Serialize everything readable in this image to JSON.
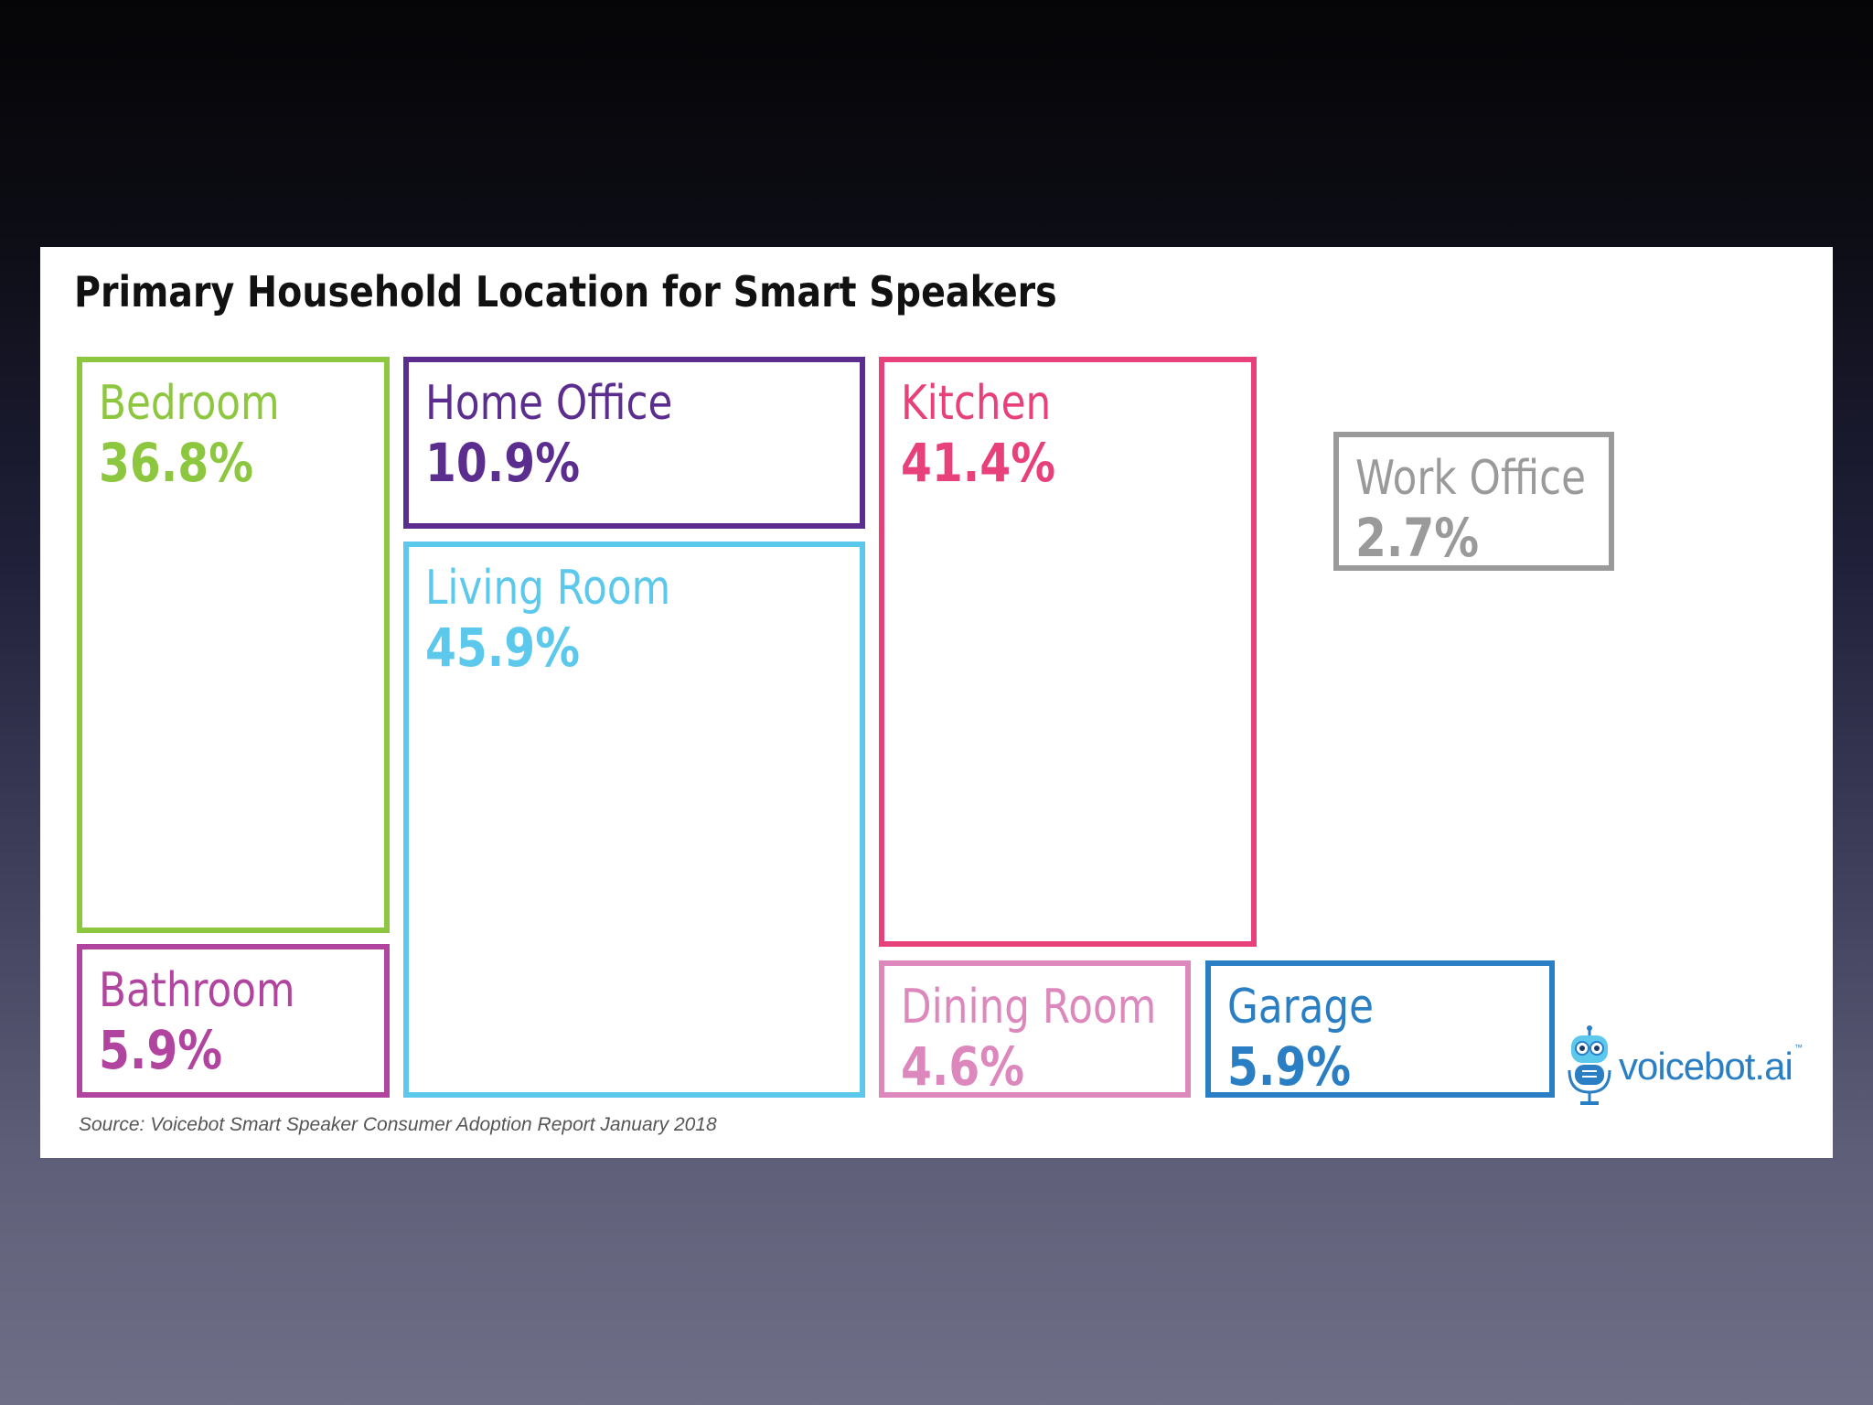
{
  "chart_data": {
    "type": "treemap",
    "title": "Primary Household Location for Smart Speakers",
    "source": "Source: Voicebot Smart Speaker Consumer Adoption Report January 2018",
    "items": [
      {
        "label": "Bedroom",
        "value": 36.8,
        "value_text": "36.8%",
        "color": "#8dc63f"
      },
      {
        "label": "Home Office",
        "value": 10.9,
        "value_text": "10.9%",
        "color": "#5b2d8e"
      },
      {
        "label": "Living Room",
        "value": 45.9,
        "value_text": "45.9%",
        "color": "#5bc8ec"
      },
      {
        "label": "Kitchen",
        "value": 41.4,
        "value_text": "41.4%",
        "color": "#e8407a"
      },
      {
        "label": "Work Office",
        "value": 2.7,
        "value_text": "2.7%",
        "color": "#9a9a9a"
      },
      {
        "label": "Bathroom",
        "value": 5.9,
        "value_text": "5.9%",
        "color": "#b0449f"
      },
      {
        "label": "Dining Room",
        "value": 4.6,
        "value_text": "4.6%",
        "color": "#dd88bd"
      },
      {
        "label": "Garage",
        "value": 5.9,
        "value_text": "5.9%",
        "color": "#2a7fc4"
      }
    ]
  },
  "brand": {
    "name": "voicebot.ai",
    "trademark": "™",
    "icon": "robot-microphone-icon",
    "color": "#2a7fc4"
  }
}
